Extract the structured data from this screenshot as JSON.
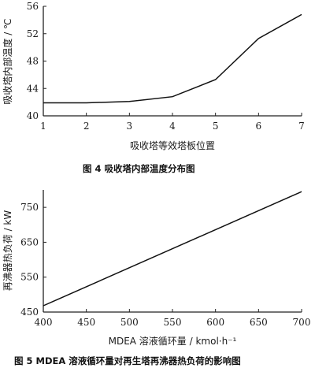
{
  "figures": [
    {
      "caption": "图 4   吸收塔内部温度分布图",
      "chart_data": {
        "type": "line",
        "title": "",
        "xlabel": "吸收塔等效塔板位置",
        "ylabel": "吸收塔内部温度 / ℃",
        "x": [
          1,
          2,
          3,
          4,
          5,
          6,
          7
        ],
        "xlim": [
          1,
          7
        ],
        "ylim": [
          40,
          56
        ],
        "xticks": [
          1,
          2,
          3,
          4,
          5,
          6,
          7
        ],
        "yticks": [
          40,
          44,
          48,
          52,
          56
        ],
        "grid": false,
        "series": [
          {
            "values": [
              41.9,
              41.9,
              42.1,
              42.8,
              45.3,
              51.3,
              54.8
            ]
          }
        ]
      }
    },
    {
      "caption": "图 5   MDEA 溶液循环量对再生塔再沸器热负荷的影响图",
      "chart_data": {
        "type": "line",
        "title": "",
        "xlabel": "MDEA 溶液循环量 / kmol·h⁻¹",
        "ylabel": "再沸器热负荷 / kW",
        "x": [
          400,
          700
        ],
        "xlim": [
          400,
          700
        ],
        "ylim": [
          450,
          800
        ],
        "xticks": [
          400,
          450,
          500,
          550,
          600,
          650,
          700
        ],
        "yticks": [
          450,
          550,
          650,
          750
        ],
        "grid": false,
        "series": [
          {
            "values": [
              468,
              795
            ]
          }
        ]
      }
    }
  ]
}
